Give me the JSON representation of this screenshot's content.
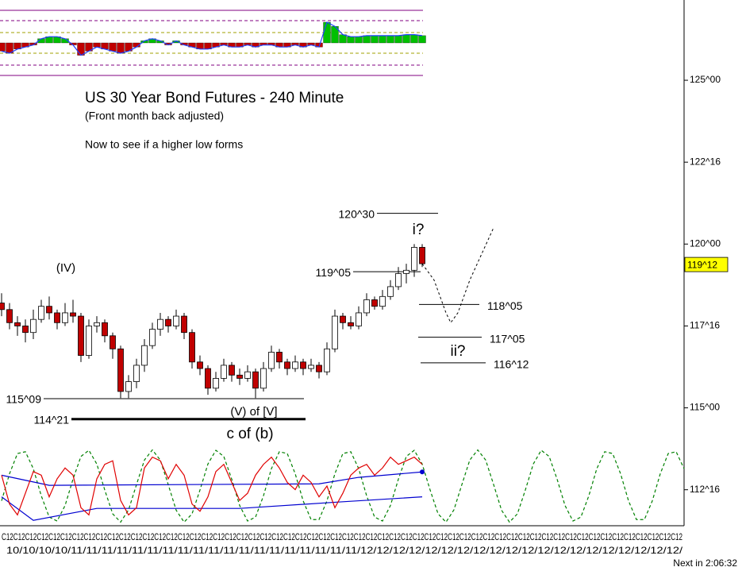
{
  "chart_data": {
    "type": "candlestick",
    "title": "US 30 Year Bond Futures - 240 Minute",
    "subtitle": "(Front month back adjusted)",
    "note": "Now to see if a higher low forms",
    "annotations": [
      "(IV)",
      "i?",
      "ii?",
      "(V) of [V]",
      "c of (b)"
    ],
    "open": [
      118.2,
      118.0,
      117.6,
      117.5,
      117.3,
      117.7,
      118.1,
      117.9,
      117.6,
      117.9,
      117.8,
      116.6,
      117.5,
      117.6,
      117.2,
      116.8,
      115.5,
      115.8,
      116.3,
      116.9,
      117.4,
      117.7,
      117.5,
      117.8,
      117.3,
      116.4,
      116.2,
      115.6,
      115.9,
      116.3,
      116.0,
      115.9,
      116.1,
      115.6,
      116.2,
      116.7,
      116.4,
      116.2,
      116.4,
      116.2,
      116.3,
      116.1,
      116.8,
      117.8,
      117.6,
      117.5,
      117.9,
      118.3,
      118.1,
      118.4,
      118.7,
      119.1,
      119.2,
      119.9
    ],
    "high": [
      118.5,
      118.2,
      117.8,
      117.7,
      118.0,
      118.3,
      118.4,
      118.0,
      118.2,
      118.3,
      117.9,
      117.7,
      117.8,
      117.7,
      117.3,
      116.9,
      116.0,
      116.5,
      117.1,
      117.6,
      117.9,
      117.8,
      118.0,
      117.9,
      117.4,
      116.6,
      116.3,
      116.1,
      116.5,
      116.4,
      116.2,
      116.3,
      116.2,
      116.4,
      116.9,
      116.8,
      116.5,
      116.6,
      116.5,
      116.5,
      116.4,
      117.0,
      118.0,
      117.9,
      117.8,
      118.1,
      118.5,
      118.4,
      118.6,
      118.9,
      119.3,
      119.4,
      120.0,
      120.0
    ],
    "low": [
      117.8,
      117.4,
      117.2,
      117.0,
      117.1,
      117.6,
      117.7,
      117.4,
      117.5,
      117.6,
      116.4,
      116.5,
      117.3,
      117.0,
      116.5,
      115.3,
      115.3,
      115.6,
      116.1,
      116.8,
      117.2,
      117.3,
      117.4,
      117.1,
      116.2,
      116.0,
      115.4,
      115.5,
      115.8,
      115.8,
      115.7,
      115.8,
      115.3,
      115.5,
      116.1,
      116.2,
      116.0,
      116.1,
      116.0,
      116.1,
      115.9,
      116.0,
      116.7,
      117.4,
      117.4,
      117.4,
      117.8,
      118.0,
      118.0,
      118.3,
      118.6,
      118.8,
      119.0,
      119.3
    ],
    "close": [
      118.0,
      117.6,
      117.5,
      117.3,
      117.7,
      118.1,
      117.9,
      117.6,
      117.9,
      117.8,
      116.6,
      117.5,
      117.6,
      117.2,
      116.8,
      115.5,
      115.8,
      116.3,
      116.9,
      117.4,
      117.7,
      117.5,
      117.8,
      117.3,
      116.4,
      116.2,
      115.6,
      115.9,
      116.3,
      116.0,
      115.9,
      116.1,
      115.6,
      116.2,
      116.7,
      116.4,
      116.2,
      116.4,
      116.2,
      116.3,
      116.1,
      116.8,
      117.8,
      117.6,
      117.5,
      117.9,
      118.3,
      118.1,
      118.4,
      118.7,
      119.1,
      119.2,
      119.9,
      119.4
    ],
    "up_color": "#ffffff",
    "down_color": "#c00000",
    "xlim": [
      -0.2,
      86
    ],
    "ylim": [
      111.45,
      127.45
    ],
    "yticks": [
      {
        "value": 112.5,
        "label": "112^16"
      },
      {
        "value": 115,
        "label": "115^00"
      },
      {
        "value": 117.5,
        "label": "117^16"
      },
      {
        "value": 120,
        "label": "120^00"
      },
      {
        "value": 122.5,
        "label": "122^16"
      },
      {
        "value": 125,
        "label": "125^00"
      }
    ],
    "last_price": {
      "value": 119.375,
      "label": "119^12"
    },
    "levels": [
      {
        "value": 120.9375,
        "label": "120^30",
        "x": [
          47.3,
          55
        ],
        "label_side": "left",
        "width": 1
      },
      {
        "value": 119.15625,
        "label": "119^05",
        "x": [
          44.3,
          52.8
        ],
        "label_side": "left",
        "width": 1
      },
      {
        "value": 118.15625,
        "label": "118^05",
        "x": [
          52.6,
          60.2
        ],
        "label_side": "right",
        "width": 1
      },
      {
        "value": 117.15625,
        "label": "117^05",
        "x": [
          52.5,
          60.5
        ],
        "label_side": "right",
        "width": 1
      },
      {
        "value": 116.375,
        "label": "116^12",
        "x": [
          52.8,
          61
        ],
        "label_side": "right",
        "width": 1
      },
      {
        "value": 115.28125,
        "label": "115^09",
        "x": [
          5.3,
          38.1
        ],
        "label_side": "left",
        "width": 1
      },
      {
        "value": 114.65625,
        "label": "114^21",
        "x": [
          8.8,
          38.3
        ],
        "label_side": "left",
        "width": 3
      }
    ],
    "projection": {
      "x": [
        53,
        54.5,
        56,
        56.6,
        57.5,
        59,
        62
      ],
      "values": [
        119.4,
        118.9,
        117.9,
        117.6,
        117.9,
        118.9,
        120.5
      ]
    },
    "x_label_rows": [
      "C12C12C12C12C12C12C12C12C12C12C12C12C12C12C12C12C12C12C12C12C12C12C12C12C12C12C12C12C12C12C12C12C12C12C12C12C12C12C12C12C12C12C12C12C12C12C12C12C12C12C12C12C12C12C12C12C12C12",
      "10/10/10/10/11/11/11/11/11/11/11/11/11/11/11/11/11/11/11/11/11/11/11/12/12/12/12/12/12/12/12/12/12/12/12/12/12/12/12/12/12/12/12/"
    ],
    "status": "Next in 2:06:32",
    "oscillator": {
      "values": [
        -0.4,
        -0.5,
        -0.3,
        -0.2,
        -0.1,
        0.2,
        0.3,
        0.3,
        0.2,
        -0.1,
        -0.6,
        -0.4,
        -0.2,
        -0.3,
        -0.4,
        -0.5,
        -0.4,
        -0.2,
        0.1,
        0.2,
        0.1,
        -0.1,
        0.1,
        -0.1,
        -0.2,
        -0.3,
        -0.3,
        -0.2,
        -0.1,
        -0.2,
        -0.2,
        -0.1,
        -0.2,
        -0.1,
        -0.1,
        -0.2,
        -0.2,
        -0.1,
        -0.2,
        -0.1,
        -0.2,
        1.0,
        0.8,
        0.4,
        0.3,
        0.3,
        0.35,
        0.35,
        0.35,
        0.35,
        0.35,
        0.4,
        0.4,
        0.35
      ],
      "ylim": [
        -1.5,
        1.5
      ],
      "up_color": "#00c000",
      "down_color": "#c00000"
    },
    "cycle_ylim": [
      -1.1,
      1.1
    ],
    "cycle_wave": {
      "color": "#008000",
      "values": [
        -0.41,
        0.34,
        0.9,
        0.95,
        0.48,
        -0.27,
        -0.86,
        -0.97,
        -0.54,
        0.19,
        0.82,
        0.99,
        0.61,
        -0.11,
        -0.77,
        -1.0,
        -0.66,
        0.04,
        0.72,
        1.0,
        0.72,
        0.04,
        -0.67,
        -1.0,
        -0.77,
        -0.11,
        0.61,
        0.99,
        0.82,
        0.19,
        -0.54,
        -0.97,
        -0.86,
        -0.27,
        0.48,
        0.95,
        0.9,
        0.34,
        -0.41,
        -0.93,
        -0.93,
        -0.41,
        0.34,
        0.9,
        0.95,
        0.48,
        -0.27,
        -0.86,
        -0.97,
        -0.54,
        0.19,
        0.82,
        0.99,
        0.61,
        -0.11,
        -0.77,
        -1.0,
        -0.66,
        0.04,
        0.72,
        1.0,
        0.72,
        0.04,
        -0.67,
        -1.0,
        -0.77,
        -0.11,
        0.61,
        0.99,
        0.82,
        0.19,
        -0.54,
        -0.97,
        -0.86,
        -0.27,
        0.48,
        0.95,
        0.9,
        0.34,
        -0.41,
        -0.93,
        -0.93,
        -0.41,
        0.34,
        0.9,
        0.95,
        0.48
      ]
    },
    "cycle_oscillator": {
      "color": "#e00000",
      "values": [
        0.3,
        -0.5,
        -0.8,
        -0.2,
        0.4,
        0.3,
        -0.3,
        0.2,
        0.5,
        0.3,
        -0.6,
        -0.8,
        0.2,
        0.6,
        0.7,
        -0.4,
        -0.8,
        -0.6,
        0.5,
        0.8,
        0.7,
        0.2,
        0.6,
        0.3,
        -0.5,
        -0.7,
        -0.3,
        0.4,
        0.6,
        0.1,
        -0.4,
        -0.2,
        0.3,
        0.6,
        0.8,
        0.5,
        0.1,
        -0.1,
        0.3,
        0.1,
        -0.3,
        0.0,
        -0.6,
        -0.2,
        0.3,
        0.5,
        0.6,
        0.3,
        0.5,
        0.8,
        0.6,
        0.7,
        0.8,
        0.6
      ]
    },
    "bands": [
      {
        "color": "#0000d0",
        "x": [
          0,
          6,
          40,
          45,
          53
        ],
        "values": [
          0.3,
          0.02,
          0.06,
          0.24,
          0.39
        ]
      },
      {
        "color": "#0000d0",
        "x": [
          0,
          4,
          12,
          30,
          42,
          53
        ],
        "values": [
          -0.3,
          -0.95,
          -0.62,
          -0.62,
          -0.45,
          -0.3
        ]
      }
    ]
  }
}
